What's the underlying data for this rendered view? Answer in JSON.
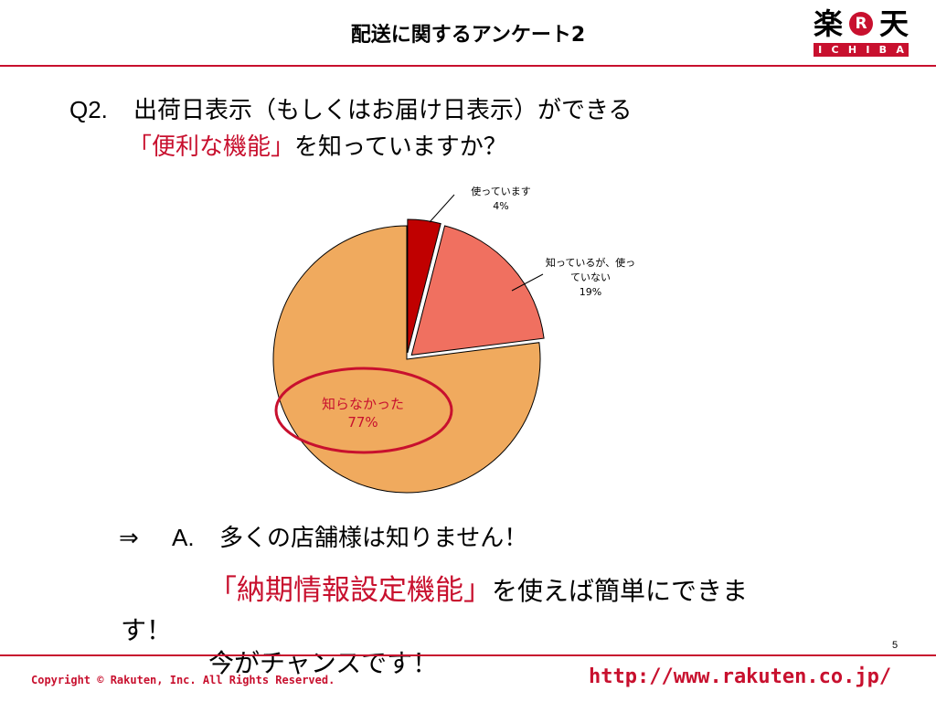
{
  "header": {
    "title": "配送に関するアンケート2",
    "logo": {
      "kanji_left": "楽",
      "mark": "R",
      "kanji_right": "天",
      "letters": [
        "I",
        "C",
        "H",
        "I",
        "B",
        "A"
      ]
    }
  },
  "question": {
    "number": "Q2.",
    "line1": "出荷日表示（もしくはお届け日表示）ができる",
    "line2_highlight": "「便利な機能」",
    "line2_rest": "を知っていますか？"
  },
  "chart_data": {
    "type": "pie",
    "slices": [
      {
        "label_lines": [
          "使っています"
        ],
        "value": 4,
        "value_label": "4%",
        "color": "#c00000"
      },
      {
        "label_lines": [
          "知っているが、使っ",
          "ていない"
        ],
        "value": 19,
        "value_label": "19%",
        "color": "#f07060"
      },
      {
        "label_lines": [
          "知らなかった"
        ],
        "value": 77,
        "value_label": "77%",
        "color": "#f0aa5e"
      }
    ],
    "exploded": true,
    "highlight": {
      "slice_index": 2,
      "shape": "ellipse",
      "color": "#c8102e"
    },
    "labels": "callouts"
  },
  "answer": {
    "arrow": "⇒",
    "label": "A.",
    "text": "多くの店舗様は知りません！",
    "highlight": "「納期情報設定機能」",
    "rest": "を使えば簡単にできま",
    "wrap": "す！",
    "chance": "今がチャンスです！"
  },
  "footer": {
    "page": "5",
    "copyright": "Copyright © Rakuten, Inc. All Rights Reserved.",
    "url": "http://www.rakuten.co.jp/"
  },
  "colors": {
    "accent": "#c8102e"
  }
}
